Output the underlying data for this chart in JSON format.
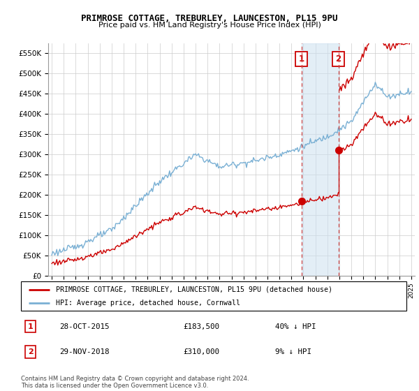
{
  "title1": "PRIMROSE COTTAGE, TREBURLEY, LAUNCESTON, PL15 9PU",
  "title2": "Price paid vs. HM Land Registry's House Price Index (HPI)",
  "ylim": [
    0,
    575000
  ],
  "yticks": [
    0,
    50000,
    100000,
    150000,
    200000,
    250000,
    300000,
    350000,
    400000,
    450000,
    500000,
    550000
  ],
  "ytick_labels": [
    "£0",
    "£50K",
    "£100K",
    "£150K",
    "£200K",
    "£250K",
    "£300K",
    "£350K",
    "£400K",
    "£450K",
    "£500K",
    "£550K"
  ],
  "sale1_date": 2015.83,
  "sale1_price": 183500,
  "sale2_date": 2018.92,
  "sale2_price": 310000,
  "highlight_color": "#cce0f0",
  "highlight_alpha": 0.55,
  "red_color": "#cc0000",
  "blue_color": "#7ab0d4",
  "legend_line1": "PRIMROSE COTTAGE, TREBURLEY, LAUNCESTON, PL15 9PU (detached house)",
  "legend_line2": "HPI: Average price, detached house, Cornwall",
  "table_row1": [
    "1",
    "28-OCT-2015",
    "£183,500",
    "40% ↓ HPI"
  ],
  "table_row2": [
    "2",
    "29-NOV-2018",
    "£310,000",
    "9% ↓ HPI"
  ],
  "footnote": "Contains HM Land Registry data © Crown copyright and database right 2024.\nThis data is licensed under the Open Government Licence v3.0.",
  "grid_color": "#cccccc",
  "xlim_left": 1994.7,
  "xlim_right": 2025.3
}
